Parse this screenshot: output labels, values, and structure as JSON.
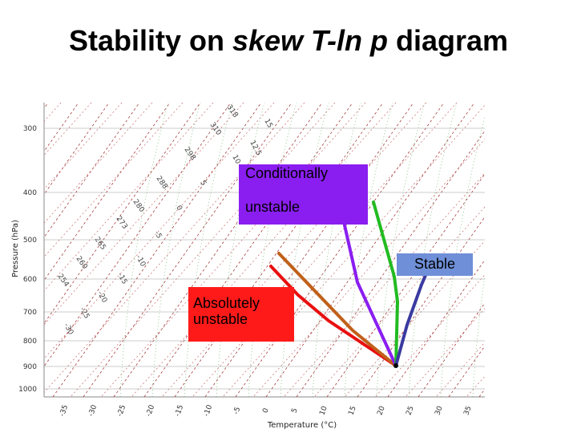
{
  "title": {
    "part1": "Stability on ",
    "part2": "skew T-ln p",
    "part3": " diagram"
  },
  "diagram": {
    "y_axis_title": "Pressure (hPa)",
    "x_axis_title": "Temperature (°C)",
    "pressure_ticks": [
      "300",
      "400",
      "500",
      "600",
      "700",
      "800",
      "900",
      "1000"
    ],
    "temperature_ticks": [
      "-35",
      "-30",
      "-25",
      "-20",
      "-15",
      "-10",
      "-5",
      "0",
      "5",
      "10",
      "15",
      "20",
      "25",
      "30",
      "35"
    ],
    "isotherm_color": "#9b2323",
    "dry_adiabat_color": "#c05050",
    "moist_adiabat_color": "#5aa55a",
    "mixing_ratio_color": "#5aa55a",
    "dry_adiabat_labels": [
      "318",
      "310",
      "298",
      "288",
      "280",
      "273",
      "265",
      "260",
      "254"
    ],
    "moist_adiabat_labels": [
      "15",
      "12.5",
      "10",
      "5",
      "0",
      "-5",
      "-10",
      "-15",
      "-20",
      "-25",
      "-30"
    ],
    "profiles": [
      {
        "name": "absolutely-unstable",
        "color": "#e81010"
      },
      {
        "name": "dry-adiabat",
        "color": "#c0601a"
      },
      {
        "name": "conditionally-unstable",
        "color": "#8a1ef0"
      },
      {
        "name": "moist-adiabat",
        "color": "#22bb22"
      },
      {
        "name": "stable",
        "color": "#3a3aa0"
      }
    ]
  },
  "labels": {
    "conditionally_line1": "Conditionally",
    "conditionally_line2": "unstable",
    "stable": "Stable",
    "absolutely_line1": "Absolutely",
    "absolutely_line2": "unstable"
  }
}
